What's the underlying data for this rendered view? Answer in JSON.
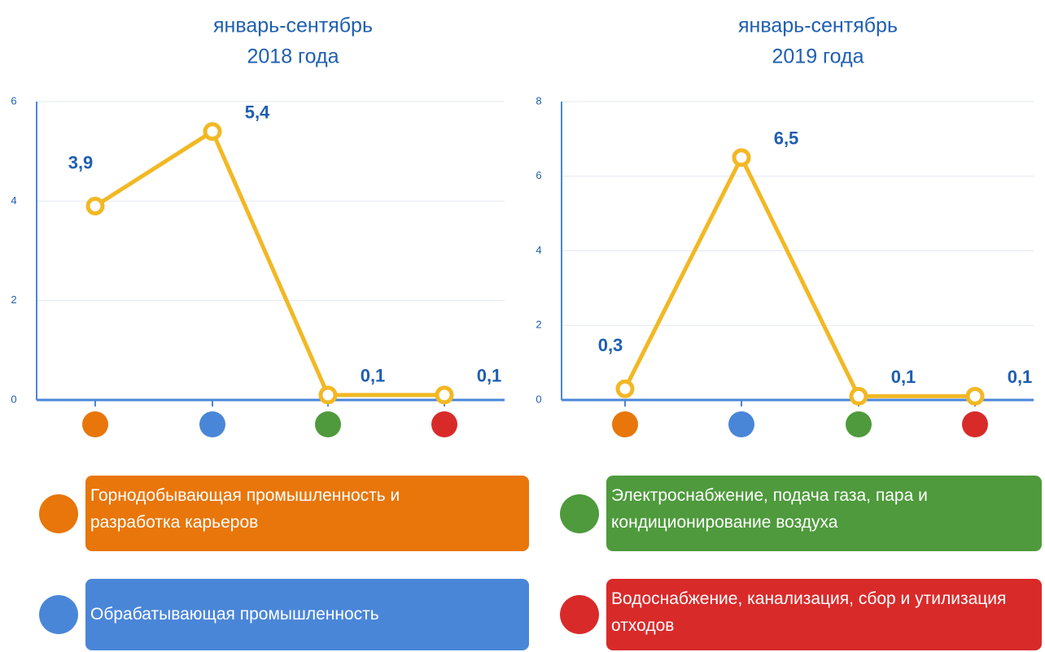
{
  "chart_data": [
    {
      "type": "line",
      "title": [
        "январь-сентябрь",
        "2018 года"
      ],
      "categories": [
        null,
        null,
        null,
        null
      ],
      "category_colors": [
        "#e8760a",
        "#4a86d8",
        "#4e9a3c",
        "#d92a2a"
      ],
      "series": [
        {
          "color": "#f2b824",
          "values": [
            3.9,
            5.4,
            0.1,
            0.1
          ],
          "value_labels": [
            "3,9",
            "5,4",
            "0,1",
            "0,1"
          ]
        }
      ],
      "ylim": [
        0,
        6
      ],
      "yticks": [
        0,
        2,
        4,
        6
      ],
      "grid": true
    },
    {
      "type": "line",
      "title": [
        "январь-сентябрь",
        "2019 года"
      ],
      "categories": [
        null,
        null,
        null,
        null
      ],
      "category_colors": [
        "#e8760a",
        "#4a86d8",
        "#4e9a3c",
        "#d92a2a"
      ],
      "series": [
        {
          "color": "#f2b824",
          "values": [
            0.3,
            6.5,
            0.1,
            0.1
          ],
          "value_labels": [
            "0,3",
            "6,5",
            "0,1",
            "0,1"
          ]
        }
      ],
      "ylim": [
        0,
        8
      ],
      "yticks": [
        0,
        2,
        4,
        6,
        8
      ],
      "grid": true
    }
  ],
  "legend": [
    {
      "name": "Горнодобывающая промышленность и разработка карьеров",
      "color": "#e8760a"
    },
    {
      "name": "Обрабатывающая промышленность",
      "color": "#4a86d8"
    },
    {
      "name": "Электроснабжение, подача газа, пара и кондиционирование воздуха",
      "color": "#4e9a3c"
    },
    {
      "name": "Водоснабжение, канализация, сбор и утилизация отходов",
      "color": "#d92a2a"
    }
  ]
}
